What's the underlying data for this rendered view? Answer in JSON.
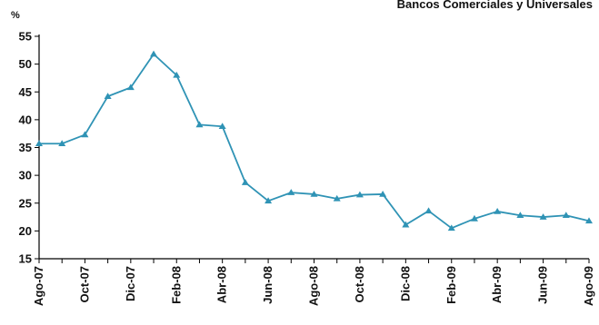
{
  "chart_data": {
    "type": "line",
    "title": "Bancos Comerciales y Universales",
    "ylabel": "%",
    "xlabel": "",
    "ylim": [
      15,
      55
    ],
    "yticks": [
      15,
      20,
      25,
      30,
      35,
      40,
      45,
      50,
      55
    ],
    "grid": false,
    "legend": "none",
    "x": [
      "Ago-07",
      "Sep-07",
      "Oct-07",
      "Nov-07",
      "Dic-07",
      "Ene-08",
      "Feb-08",
      "Mar-08",
      "Abr-08",
      "May-08",
      "Jun-08",
      "Jul-08",
      "Ago-08",
      "Sep-08",
      "Oct-08",
      "Nov-08",
      "Dic-08",
      "Ene-09",
      "Feb-09",
      "Mar-09",
      "Abr-09",
      "May-09",
      "Jun-09",
      "Jul-09",
      "Ago-09"
    ],
    "xtick_labels": [
      "Ago-07",
      "Oct-07",
      "Dic-07",
      "Feb-08",
      "Abr-08",
      "Jun-08",
      "Ago-08",
      "Oct-08",
      "Dic-08",
      "Feb-09",
      "Abr-09",
      "Jun-09",
      "Ago-09"
    ],
    "series": [
      {
        "values": [
          35.7,
          35.7,
          37.3,
          44.2,
          45.8,
          51.8,
          48.0,
          39.1,
          38.8,
          28.7,
          25.4,
          26.9,
          26.6,
          25.8,
          26.5,
          26.6,
          21.1,
          23.6,
          20.5,
          22.2,
          23.5,
          22.8,
          22.5,
          22.8,
          21.8
        ],
        "color": "#2f93b5"
      }
    ]
  }
}
